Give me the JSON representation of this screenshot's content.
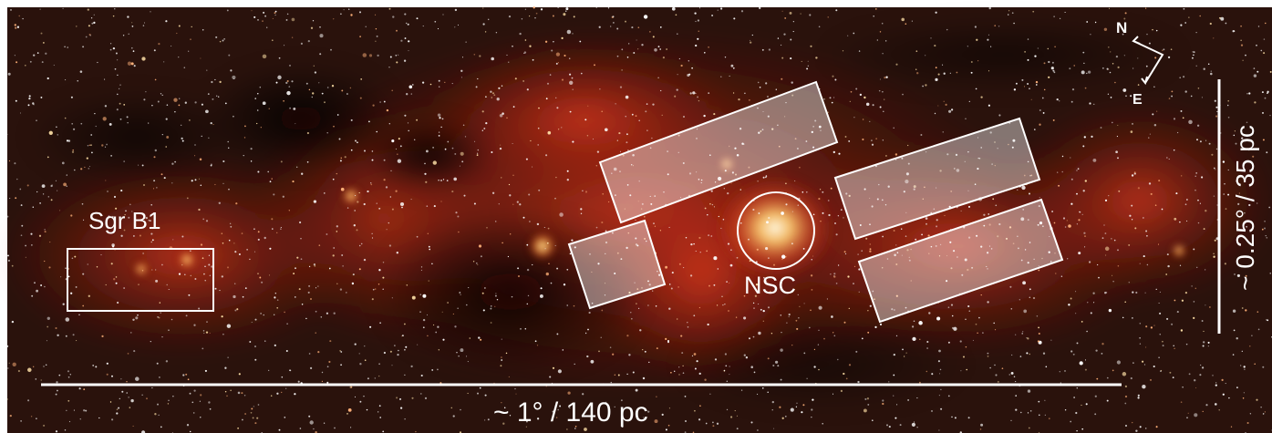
{
  "image": {
    "description_colors": {
      "background_dark": "#1a0a08",
      "nebula_red": "#c8281a",
      "nebula_orange": "#e86a2a",
      "star": "#ffffff",
      "overlay": "#ffffff"
    }
  },
  "labels": {
    "sgr_b1": "Sgr B1",
    "nsc": "NSC",
    "horizontal_scale": "~ 1° / 140 pc",
    "vertical_scale": "~ 0.25° / 35 pc",
    "compass_north": "N",
    "compass_east": "E"
  }
}
